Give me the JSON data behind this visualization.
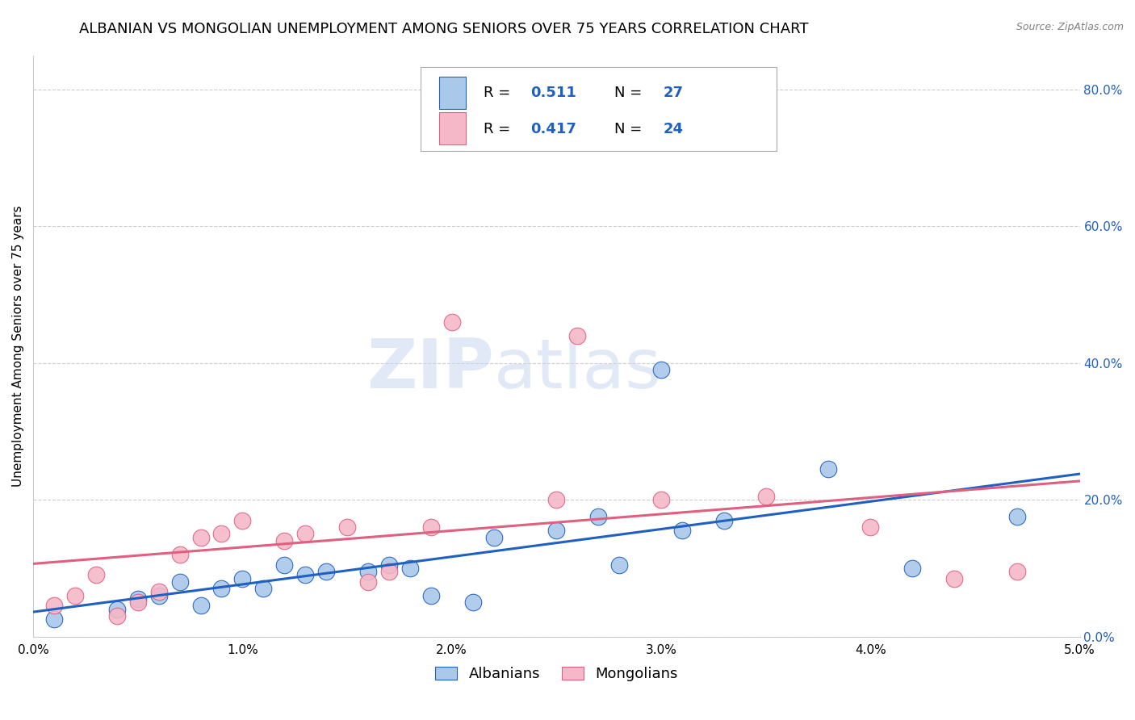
{
  "title": "ALBANIAN VS MONGOLIAN UNEMPLOYMENT AMONG SENIORS OVER 75 YEARS CORRELATION CHART",
  "source": "Source: ZipAtlas.com",
  "ylabel": "Unemployment Among Seniors over 75 years",
  "xlim": [
    0.0,
    0.05
  ],
  "ylim": [
    0.0,
    0.85
  ],
  "xticks": [
    0.0,
    0.01,
    0.02,
    0.03,
    0.04,
    0.05
  ],
  "xticklabels": [
    "0.0%",
    "1.0%",
    "2.0%",
    "3.0%",
    "4.0%",
    "5.0%"
  ],
  "yticks_right": [
    0.0,
    0.2,
    0.4,
    0.6,
    0.8
  ],
  "ytick_right_labels": [
    "0.0%",
    "20.0%",
    "40.0%",
    "60.0%",
    "80.0%"
  ],
  "grid_color": "#cccccc",
  "background_color": "#ffffff",
  "albanians_color": "#aac8ea",
  "mongolians_color": "#f5b8c8",
  "albanians_line_color": "#2060c0",
  "mongolians_line_color": "#e06080",
  "albanians_R": 0.511,
  "albanians_N": 27,
  "mongolians_R": 0.417,
  "mongolians_N": 24,
  "legend_text_color": "#2060c0",
  "albanians_x": [
    0.001,
    0.004,
    0.005,
    0.006,
    0.007,
    0.008,
    0.009,
    0.01,
    0.011,
    0.012,
    0.013,
    0.014,
    0.016,
    0.017,
    0.018,
    0.019,
    0.021,
    0.022,
    0.025,
    0.027,
    0.028,
    0.03,
    0.031,
    0.033,
    0.038,
    0.042,
    0.047
  ],
  "albanians_y": [
    0.025,
    0.04,
    0.055,
    0.06,
    0.08,
    0.045,
    0.07,
    0.085,
    0.07,
    0.105,
    0.09,
    0.095,
    0.095,
    0.105,
    0.1,
    0.06,
    0.05,
    0.145,
    0.155,
    0.175,
    0.105,
    0.39,
    0.155,
    0.17,
    0.245,
    0.1,
    0.175
  ],
  "mongolians_x": [
    0.001,
    0.002,
    0.003,
    0.004,
    0.005,
    0.006,
    0.007,
    0.008,
    0.009,
    0.01,
    0.012,
    0.013,
    0.015,
    0.016,
    0.017,
    0.019,
    0.02,
    0.025,
    0.026,
    0.03,
    0.035,
    0.04,
    0.044,
    0.047
  ],
  "mongolians_y": [
    0.045,
    0.06,
    0.09,
    0.03,
    0.05,
    0.065,
    0.12,
    0.145,
    0.15,
    0.17,
    0.14,
    0.15,
    0.16,
    0.08,
    0.095,
    0.16,
    0.46,
    0.2,
    0.44,
    0.2,
    0.205,
    0.16,
    0.085,
    0.095
  ],
  "watermark_zip": "ZIP",
  "watermark_atlas": "atlas",
  "title_fontsize": 13,
  "legend_fontsize": 13,
  "axis_label_fontsize": 11,
  "tick_fontsize": 11
}
